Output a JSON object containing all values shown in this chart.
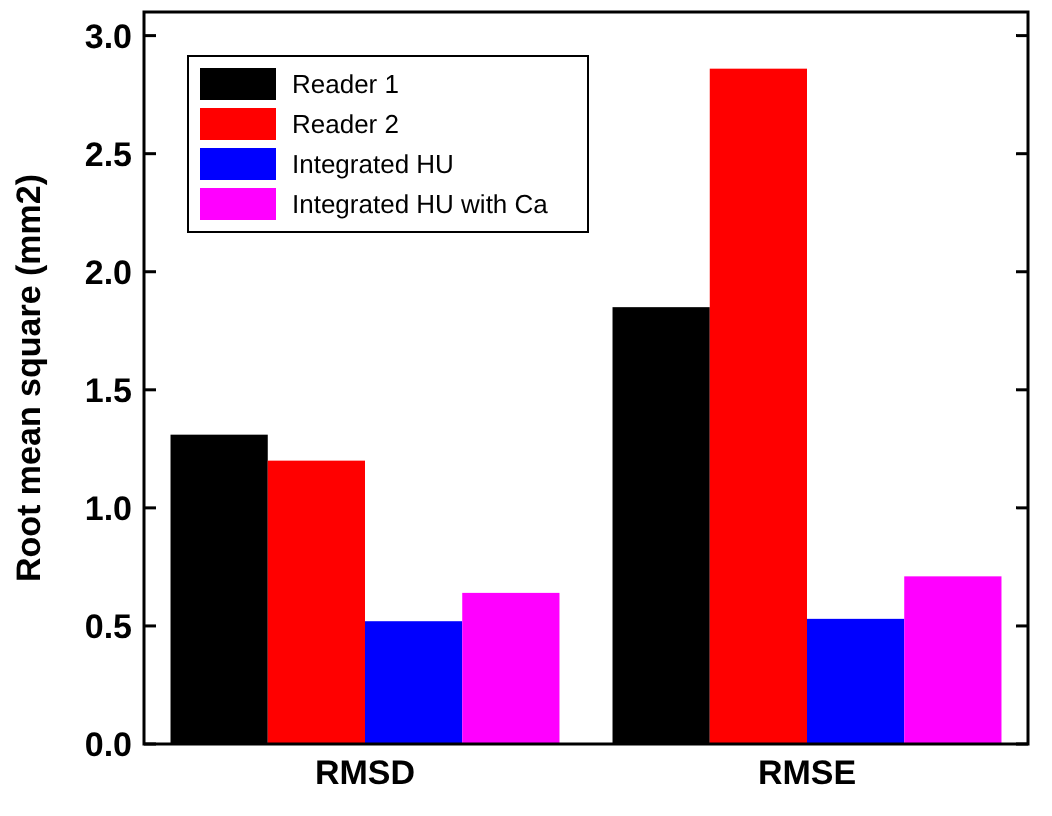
{
  "chart_data": {
    "type": "bar",
    "ylabel": "Root mean square (mm2)",
    "categories": [
      "RMSD",
      "RMSE"
    ],
    "series": [
      {
        "name": "Reader 1",
        "color": "#000000",
        "values": [
          1.31,
          1.85
        ]
      },
      {
        "name": "Reader 2",
        "color": "#ff0000",
        "values": [
          1.2,
          2.86
        ]
      },
      {
        "name": "Integrated HU",
        "color": "#0000ff",
        "values": [
          0.52,
          0.53
        ]
      },
      {
        "name": "Integrated HU with Ca",
        "color": "#ff00ff",
        "values": [
          0.64,
          0.71
        ]
      }
    ],
    "ylim": [
      0,
      3.1
    ],
    "yticks": [
      {
        "value": 0,
        "label": "0.0"
      },
      {
        "value": 0.5,
        "label": "0.5"
      },
      {
        "value": 1,
        "label": "1.0"
      },
      {
        "value": 1.5,
        "label": "1.5"
      },
      {
        "value": 2,
        "label": "2.0"
      },
      {
        "value": 2.5,
        "label": "2.5"
      },
      {
        "value": 3,
        "label": "3.0"
      }
    ],
    "legend": "top left"
  }
}
